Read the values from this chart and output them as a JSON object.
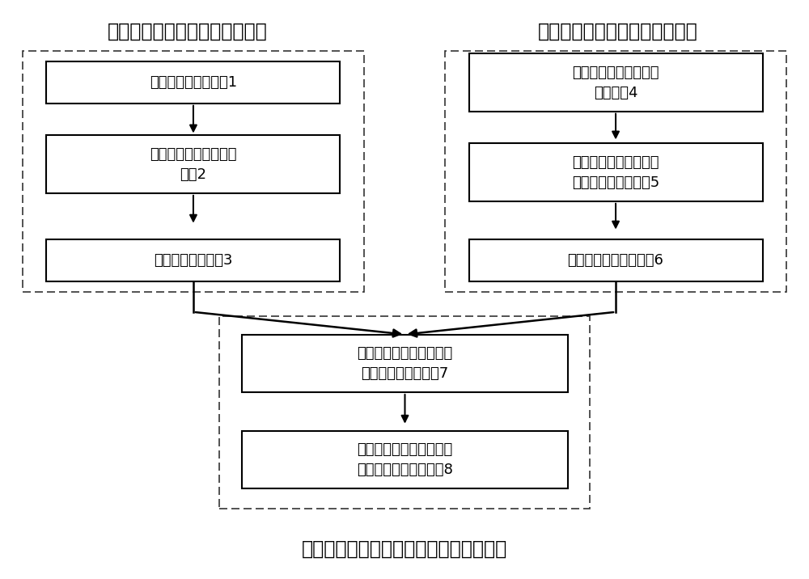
{
  "title1": "步骤一：波长调制光谱仿真步骤",
  "title2": "步骤二：波长调制光谱拟合步骤",
  "title3": "步骤三：非均匀流场中气体参数计算步骤",
  "box1": "选择合适的吸收谱线1",
  "box2": "采集波长调制光谱测量\n信号2",
  "box3": "解调调制光谱信号3",
  "box4": "计算谱线积分吸光度的\n变化范围4",
  "box5": "计算谱线高斯线宽和洛\n伦兹线宽的变化范围5",
  "box6": "最小二乘拟合谐波信号6",
  "box7": "拟合温度范围内谱线的线\n强度随的温度的变化7",
  "box8": "计算非均匀流场内的气体\n温度和吸收分子的分压8",
  "bg_color": "#ffffff",
  "text_color": "#000000",
  "box_edge_color": "#000000",
  "font_size_title": 17,
  "font_size_box": 13
}
